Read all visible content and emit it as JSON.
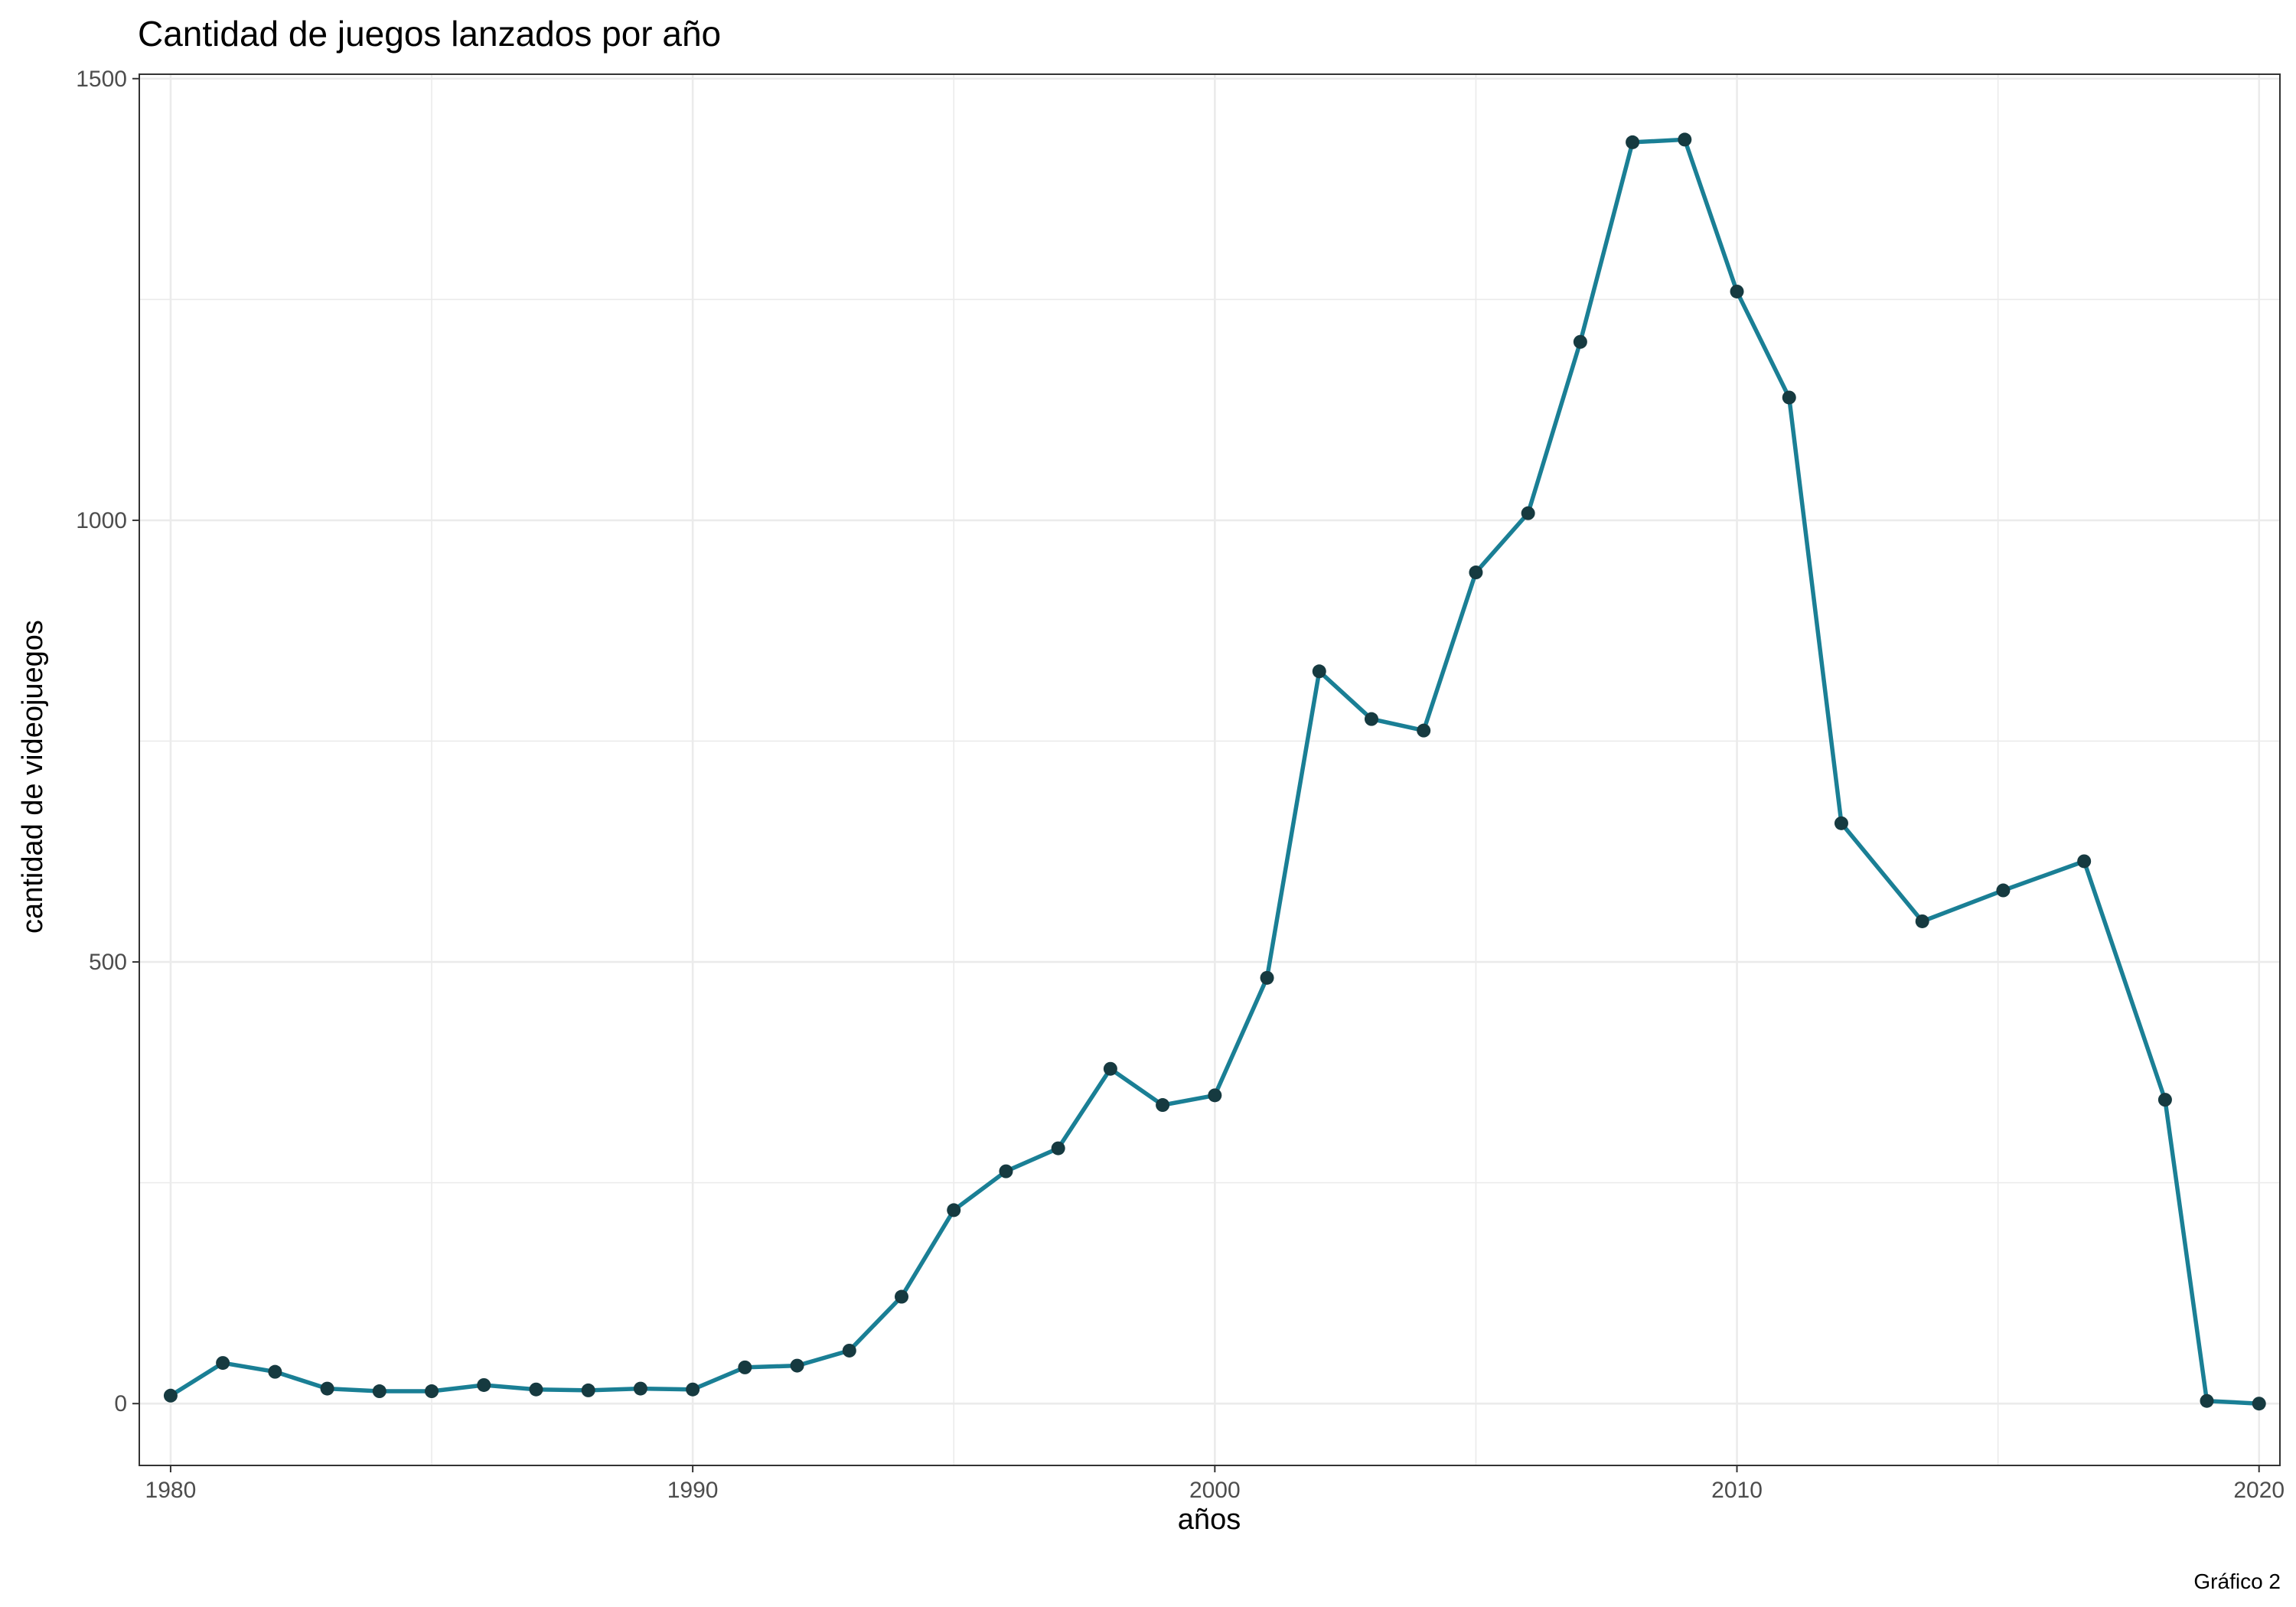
{
  "chart_data": {
    "type": "line",
    "title": "Cantidad de juegos lanzados por año",
    "xlabel": "años",
    "ylabel": "cantidad de videojuegos",
    "caption": "Gráfico 2",
    "xlim": [
      1979.4,
      2020.4
    ],
    "ylim": [
      -70,
      1505
    ],
    "x_ticks": [
      1980,
      1990,
      2000,
      2010,
      2020
    ],
    "y_ticks": [
      0,
      500,
      1000,
      1500
    ],
    "grid": true,
    "colors": {
      "line": "#1a7f95",
      "point": "#163a40"
    },
    "series": [
      {
        "name": "juegos",
        "x": [
          1980,
          1981,
          1982,
          1983,
          1984,
          1985,
          1986,
          1987,
          1988,
          1989,
          1990,
          1991,
          1992,
          1993,
          1994,
          1995,
          1996,
          1997,
          1998,
          1999,
          2000,
          2001,
          2002,
          2003,
          2004,
          2005,
          2006,
          2007,
          2008,
          2009,
          2010,
          2011,
          2012,
          2013,
          2014,
          2015,
          2016,
          2017,
          2018
        ],
        "x_override_note": "",
        "values": [
          9,
          46,
          36,
          17,
          14,
          14,
          21,
          16,
          15,
          17,
          16,
          41,
          43,
          60,
          121,
          219,
          263,
          289,
          379,
          338,
          349,
          482,
          829,
          775,
          762,
          941,
          1008,
          1202,
          1428,
          1431,
          1259,
          1139,
          657,
          546,
          581,
          614,
          344,
          3,
          0
        ]
      }
    ]
  }
}
